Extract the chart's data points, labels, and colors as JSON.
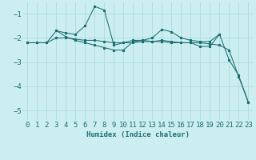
{
  "xlabel": "Humidex (Indice chaleur)",
  "background_color": "#cceef0",
  "grid_color": "#aadddf",
  "line_color": "#1a7070",
  "xlim": [
    -0.5,
    23.5
  ],
  "ylim": [
    -5.4,
    -0.55
  ],
  "yticks": [
    -5,
    -4,
    -3,
    -2,
    -1
  ],
  "xticks": [
    0,
    1,
    2,
    3,
    4,
    5,
    6,
    7,
    8,
    9,
    10,
    11,
    12,
    13,
    14,
    15,
    16,
    17,
    18,
    19,
    20,
    21,
    22,
    23
  ],
  "series1_x": [
    0,
    1,
    2,
    3,
    4,
    5,
    6,
    7,
    8,
    9,
    10,
    11,
    12,
    13,
    14,
    15,
    16,
    17,
    18,
    19,
    20,
    21,
    22,
    23
  ],
  "series1_y": [
    -2.2,
    -2.2,
    -2.2,
    -2.0,
    -2.0,
    -2.05,
    -2.1,
    -2.1,
    -2.15,
    -2.2,
    -2.2,
    -2.2,
    -2.15,
    -2.15,
    -2.15,
    -2.2,
    -2.2,
    -2.2,
    -2.2,
    -2.25,
    -2.3,
    -2.5,
    -3.6,
    -4.65
  ],
  "series2_x": [
    0,
    1,
    2,
    3,
    4,
    5,
    6,
    7,
    8,
    9,
    10,
    11,
    12,
    13,
    14,
    15,
    16,
    17,
    18,
    19,
    20,
    21,
    22,
    23
  ],
  "series2_y": [
    -2.2,
    -2.2,
    -2.2,
    -1.7,
    -1.8,
    -1.85,
    -1.5,
    -0.7,
    -0.85,
    -2.3,
    -2.2,
    -2.1,
    -2.1,
    -2.0,
    -1.65,
    -1.75,
    -2.0,
    -2.1,
    -2.15,
    -2.15,
    -1.85,
    -2.9,
    -3.55,
    -4.65
  ],
  "series3_x": [
    3,
    4,
    5,
    6,
    7,
    8,
    9,
    10,
    11,
    12,
    13,
    14,
    15,
    16,
    17,
    18,
    19,
    20
  ],
  "series3_y": [
    -1.7,
    -1.95,
    -2.1,
    -2.2,
    -2.3,
    -2.4,
    -2.5,
    -2.5,
    -2.15,
    -2.1,
    -2.15,
    -2.1,
    -2.15,
    -2.2,
    -2.2,
    -2.35,
    -2.35,
    -1.85
  ],
  "font_color": "#1a7070",
  "font_size": 6.5
}
